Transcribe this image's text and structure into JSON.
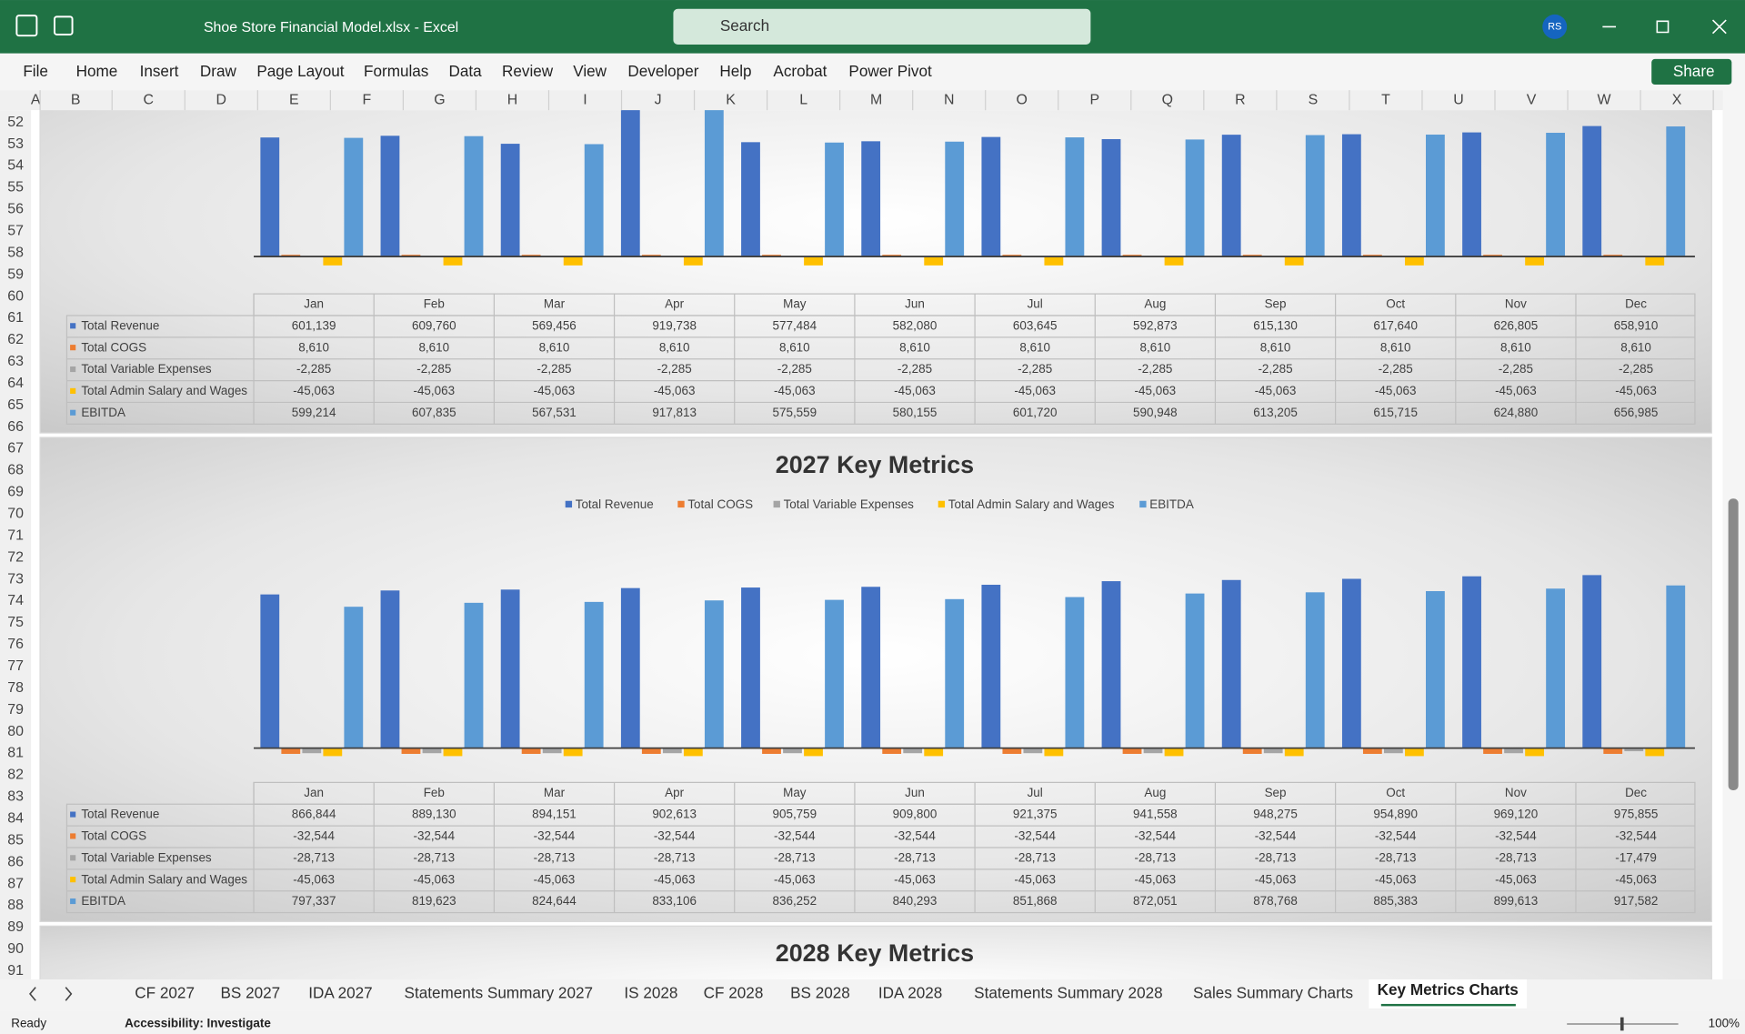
{
  "window": {
    "title": "Shoe Store Financial Model.xlsx  -  Excel",
    "search": "Search",
    "user": "RS"
  },
  "ribbon_tabs": [
    "File",
    "Home",
    "Insert",
    "Draw",
    "Page Layout",
    "Formulas",
    "Data",
    "Review",
    "View",
    "Developer",
    "Help",
    "Acrobat",
    "Power Pivot"
  ],
  "share": "Share",
  "columns": [
    "A",
    "B",
    "C",
    "D",
    "E",
    "F",
    "G",
    "H",
    "I",
    "J",
    "K",
    "L",
    "M",
    "N",
    "O",
    "P",
    "Q",
    "R",
    "S",
    "T",
    "U",
    "V",
    "W",
    "X"
  ],
  "rows": [
    "52",
    "53",
    "54",
    "55",
    "56",
    "57",
    "58",
    "59",
    "60",
    "61",
    "62",
    "63",
    "64",
    "65",
    "66",
    "67",
    "68",
    "69",
    "70",
    "71",
    "72",
    "73",
    "74",
    "75",
    "76",
    "77",
    "78",
    "79",
    "80",
    "81",
    "82",
    "83",
    "84",
    "85",
    "86",
    "87",
    "88",
    "89",
    "90",
    "91"
  ],
  "charts": [
    {
      "type": "bar",
      "ylim": [
        -200000,
        1200000
      ],
      "categories": [
        "Jan",
        "Feb",
        "Mar",
        "Apr",
        "May",
        "Jun",
        "Jul",
        "Aug",
        "Sep",
        "Oct",
        "Nov",
        "Dec"
      ],
      "series": [
        {
          "name": "Total Revenue",
          "color": "#4472c4",
          "values": [
            601139,
            609760,
            569456,
            919738,
            577484,
            582080,
            603645,
            592873,
            615130,
            617640,
            626805,
            658910
          ],
          "value_labels": [
            "601,139",
            "609,760",
            "569,456",
            "919,738",
            "577,484",
            "582,080",
            "603,645",
            "592,873",
            "615,130",
            "617,640",
            "626,805",
            "658,910"
          ]
        },
        {
          "name": "Total COGS",
          "color": "#ed7d31",
          "values": [
            8610,
            8610,
            8610,
            8610,
            8610,
            8610,
            8610,
            8610,
            8610,
            8610,
            8610,
            8610
          ],
          "value_labels": [
            "8,610",
            "8,610",
            "8,610",
            "8,610",
            "8,610",
            "8,610",
            "8,610",
            "8,610",
            "8,610",
            "8,610",
            "8,610",
            "8,610"
          ]
        },
        {
          "name": "Total Variable Expenses",
          "color": "#a5a5a5",
          "values": [
            -2285,
            -2285,
            -2285,
            -2285,
            -2285,
            -2285,
            -2285,
            -2285,
            -2285,
            -2285,
            -2285,
            -2285
          ],
          "value_labels": [
            "-2,285",
            "-2,285",
            "-2,285",
            "-2,285",
            "-2,285",
            "-2,285",
            "-2,285",
            "-2,285",
            "-2,285",
            "-2,285",
            "-2,285",
            "-2,285"
          ]
        },
        {
          "name": "Total Admin Salary and Wages",
          "color": "#ffc000",
          "values": [
            -45063,
            -45063,
            -45063,
            -45063,
            -45063,
            -45063,
            -45063,
            -45063,
            -45063,
            -45063,
            -45063,
            -45063
          ],
          "value_labels": [
            "-45,063",
            "-45,063",
            "-45,063",
            "-45,063",
            "-45,063",
            "-45,063",
            "-45,063",
            "-45,063",
            "-45,063",
            "-45,063",
            "-45,063",
            "-45,063"
          ]
        },
        {
          "name": "EBITDA",
          "color": "#5b9bd5",
          "values": [
            599214,
            607835,
            567531,
            917813,
            575559,
            580155,
            601720,
            590948,
            613205,
            615715,
            624880,
            656985
          ],
          "value_labels": [
            "599,214",
            "607,835",
            "567,531",
            "917,813",
            "575,559",
            "580,155",
            "601,720",
            "590,948",
            "613,205",
            "615,715",
            "624,880",
            "656,985"
          ]
        }
      ]
    },
    {
      "type": "bar",
      "title": "2027 Key Metrics",
      "legend": "top",
      "ylim": [
        -200000,
        1200000
      ],
      "categories": [
        "Jan",
        "Feb",
        "Mar",
        "Apr",
        "May",
        "Jun",
        "Jul",
        "Aug",
        "Sep",
        "Oct",
        "Nov",
        "Dec"
      ],
      "series": [
        {
          "name": "Total Revenue",
          "color": "#4472c4",
          "values": [
            866844,
            889130,
            894151,
            902613,
            905759,
            909800,
            921375,
            941558,
            948275,
            954890,
            969120,
            975855
          ],
          "value_labels": [
            "866,844",
            "889,130",
            "894,151",
            "902,613",
            "905,759",
            "909,800",
            "921,375",
            "941,558",
            "948,275",
            "954,890",
            "969,120",
            "975,855"
          ]
        },
        {
          "name": "Total COGS",
          "color": "#ed7d31",
          "values": [
            -32544,
            -32544,
            -32544,
            -32544,
            -32544,
            -32544,
            -32544,
            -32544,
            -32544,
            -32544,
            -32544,
            -32544
          ],
          "value_labels": [
            "-32,544",
            "-32,544",
            "-32,544",
            "-32,544",
            "-32,544",
            "-32,544",
            "-32,544",
            "-32,544",
            "-32,544",
            "-32,544",
            "-32,544",
            "-32,544"
          ]
        },
        {
          "name": "Total Variable Expenses",
          "color": "#a5a5a5",
          "values": [
            -28713,
            -28713,
            -28713,
            -28713,
            -28713,
            -28713,
            -28713,
            -28713,
            -28713,
            -28713,
            -28713,
            -17479
          ],
          "value_labels": [
            "-28,713",
            "-28,713",
            "-28,713",
            "-28,713",
            "-28,713",
            "-28,713",
            "-28,713",
            "-28,713",
            "-28,713",
            "-28,713",
            "-28,713",
            "-17,479"
          ]
        },
        {
          "name": "Total Admin Salary and Wages",
          "color": "#ffc000",
          "values": [
            -45063,
            -45063,
            -45063,
            -45063,
            -45063,
            -45063,
            -45063,
            -45063,
            -45063,
            -45063,
            -45063,
            -45063
          ],
          "value_labels": [
            "-45,063",
            "-45,063",
            "-45,063",
            "-45,063",
            "-45,063",
            "-45,063",
            "-45,063",
            "-45,063",
            "-45,063",
            "-45,063",
            "-45,063",
            "-45,063"
          ]
        },
        {
          "name": "EBITDA",
          "color": "#5b9bd5",
          "values": [
            797337,
            819623,
            824644,
            833106,
            836252,
            840293,
            851868,
            872051,
            878768,
            885383,
            899613,
            917582
          ],
          "value_labels": [
            "797,337",
            "819,623",
            "824,644",
            "833,106",
            "836,252",
            "840,293",
            "851,868",
            "872,051",
            "878,768",
            "885,383",
            "899,613",
            "917,582"
          ]
        }
      ]
    },
    {
      "type": "bar",
      "title": "2028 Key Metrics"
    }
  ],
  "sheet_tabs": [
    "CF 2027",
    "BS 2027",
    "IDA 2027",
    "Statements Summary 2027",
    "IS 2028",
    "CF 2028",
    "BS 2028",
    "IDA 2028",
    "Statements Summary 2028",
    "Sales Summary Charts",
    "Key Metrics Charts"
  ],
  "active_tab": 10,
  "status": {
    "ready": "Ready",
    "accessibility": "Accessibility: Investigate",
    "zoom": "100%"
  }
}
